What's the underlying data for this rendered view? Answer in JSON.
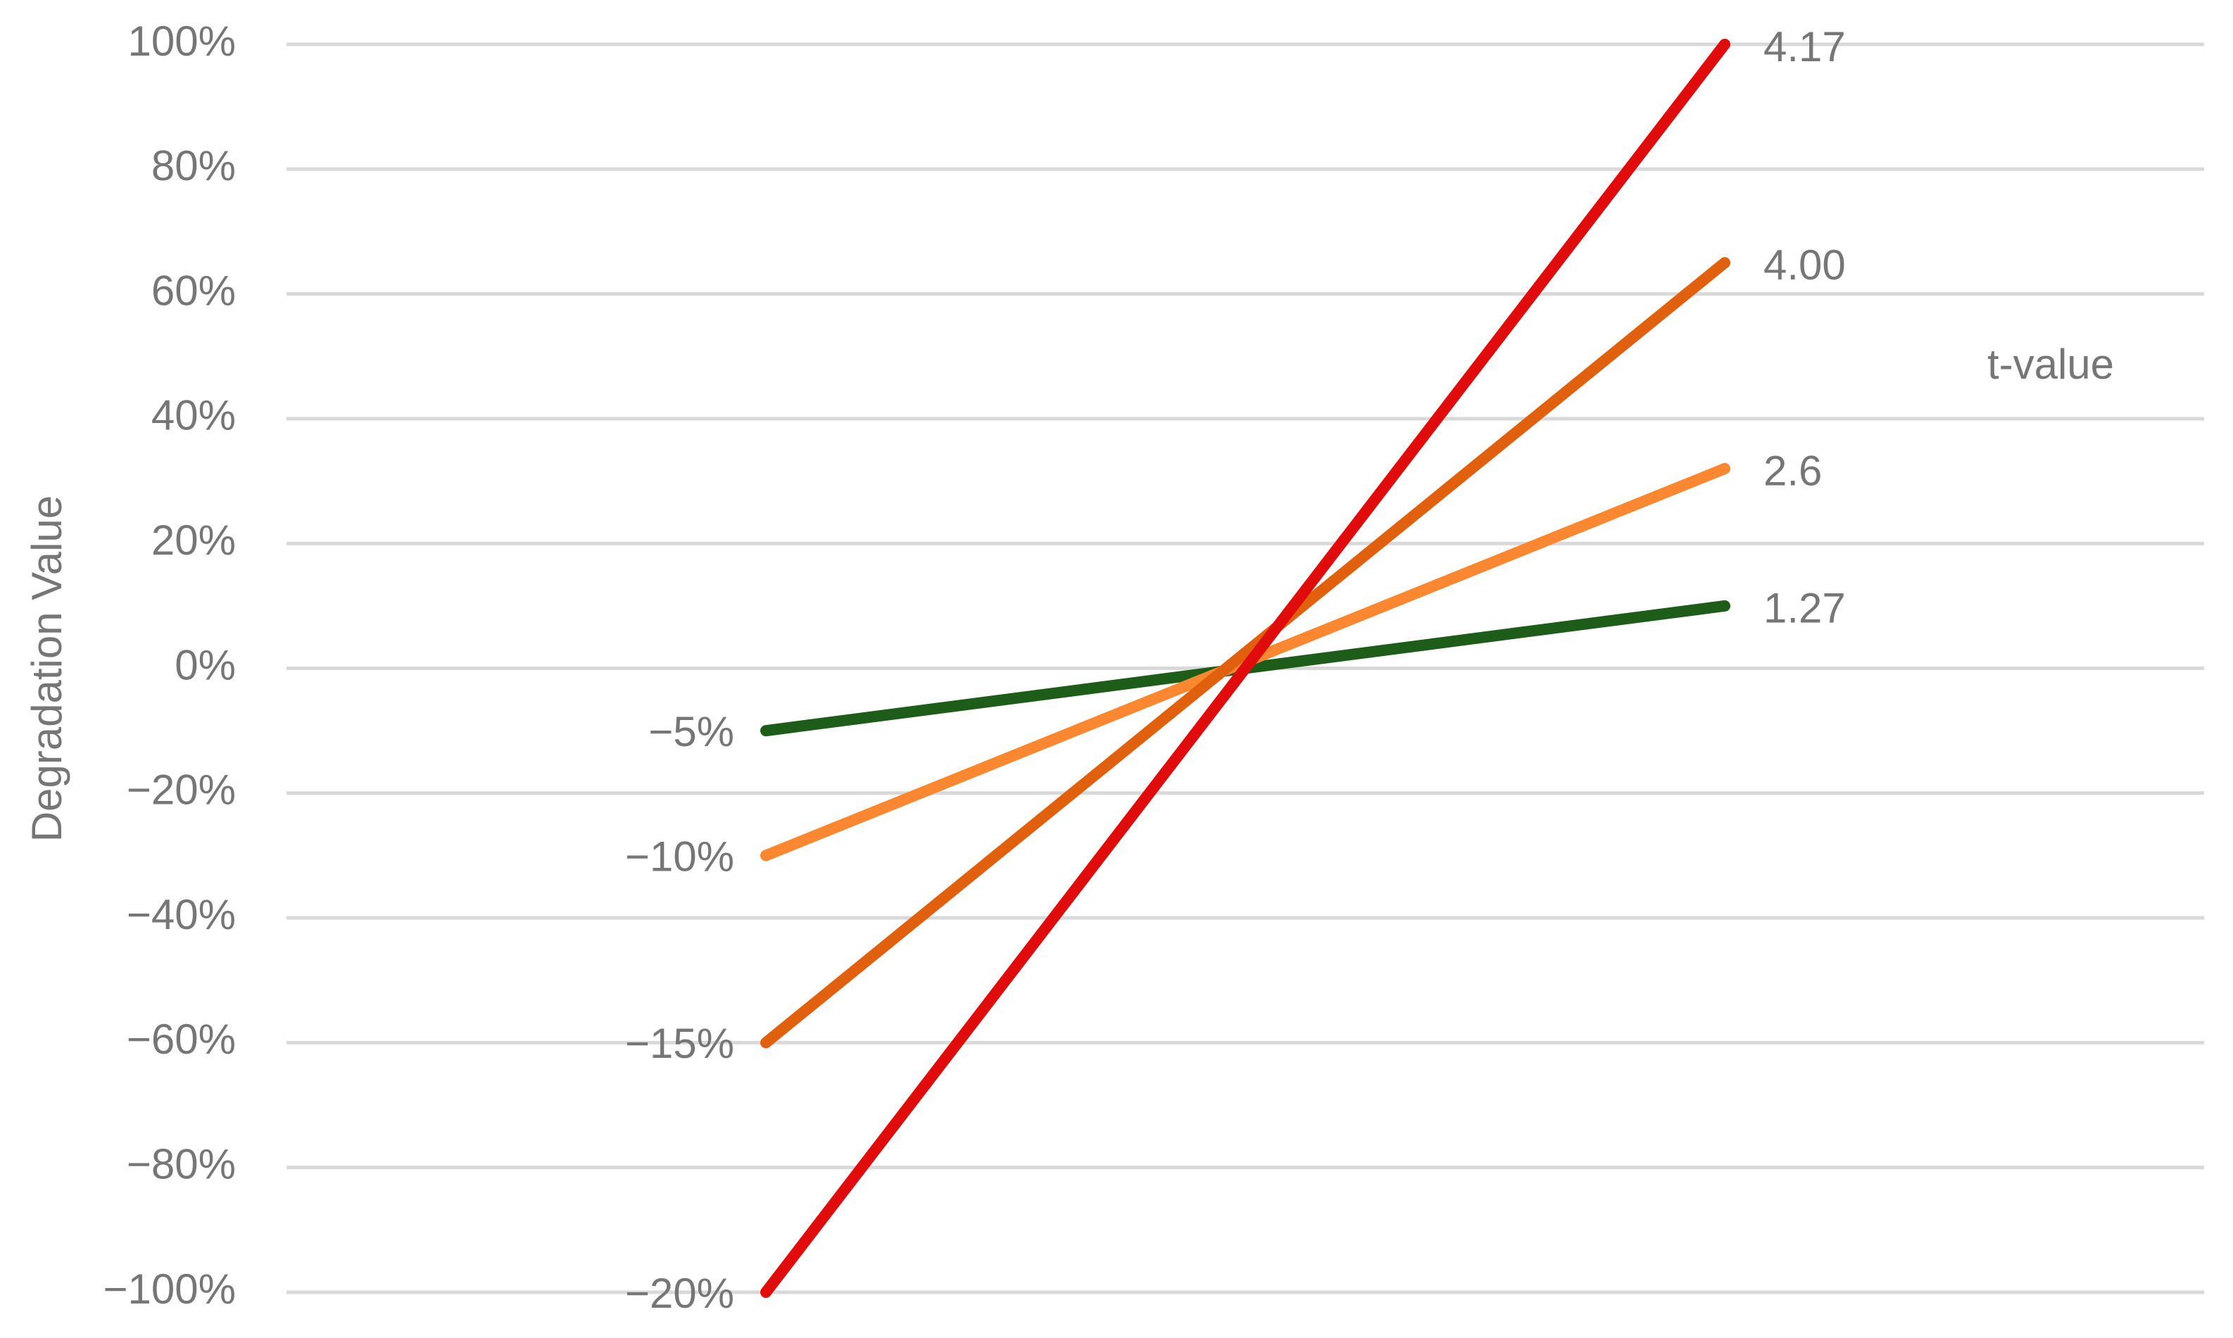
{
  "chart_data": {
    "type": "line",
    "y_label": "Degradation Value",
    "annotation": "t-value",
    "categories": [
      null,
      null
    ],
    "series": [
      {
        "color": "#1e5c1a",
        "values": [
          -10,
          10
        ],
        "labels": [
          "−5%",
          "1.27"
        ]
      },
      {
        "color": "#fb8731",
        "values": [
          -30,
          32
        ],
        "labels": [
          "−10%",
          "2.6"
        ]
      },
      {
        "color": "#e0600e",
        "values": [
          -60,
          65
        ],
        "labels": [
          "−15%",
          "4.00"
        ]
      },
      {
        "color": "#e00b0b",
        "values": [
          -100,
          100
        ],
        "labels": [
          "−20%",
          "4.17"
        ]
      }
    ],
    "ylim": [
      -100,
      100
    ],
    "yticks": [
      {
        "value": -100,
        "label": "−100%"
      },
      {
        "value": -80,
        "label": "−80%"
      },
      {
        "value": -60,
        "label": "−60%"
      },
      {
        "value": -40,
        "label": "−40%"
      },
      {
        "value": -20,
        "label": "−20%"
      },
      {
        "value": 0,
        "label": "0%"
      },
      {
        "value": 20,
        "label": "20%"
      },
      {
        "value": 40,
        "label": "40%"
      },
      {
        "value": 60,
        "label": "60%"
      },
      {
        "value": 80,
        "label": "80%"
      },
      {
        "value": 100,
        "label": "100%"
      }
    ],
    "grid": true
  }
}
